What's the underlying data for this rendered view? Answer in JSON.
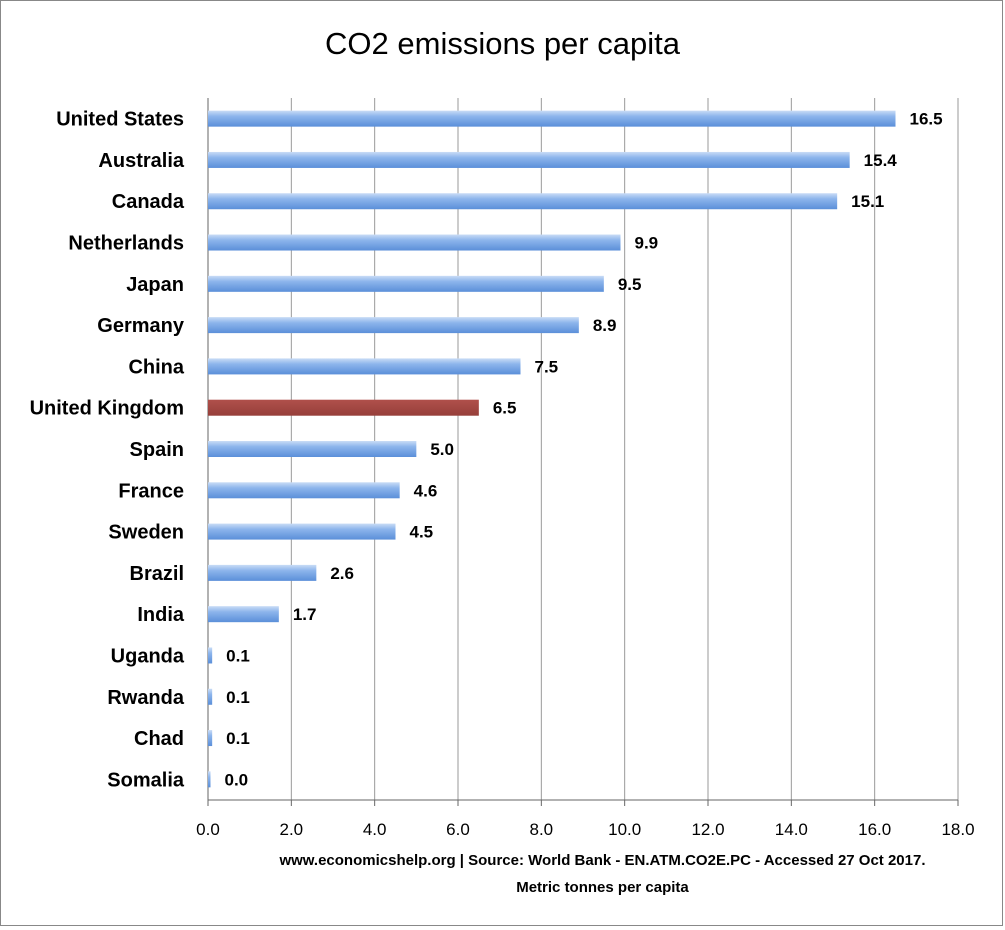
{
  "chart_data": {
    "type": "bar",
    "orientation": "horizontal",
    "title": "CO2 emissions per capita",
    "categories": [
      "United States",
      "Australia",
      "Canada",
      "Netherlands",
      "Japan",
      "Germany",
      "China",
      "United Kingdom",
      "Spain",
      "France",
      "Sweden",
      "Brazil",
      "India",
      "Uganda",
      "Rwanda",
      "Chad",
      "Somalia"
    ],
    "values": [
      16.5,
      15.4,
      15.1,
      9.9,
      9.5,
      8.9,
      7.5,
      6.5,
      5.0,
      4.6,
      4.5,
      2.6,
      1.7,
      0.1,
      0.1,
      0.1,
      0.0
    ],
    "value_labels": [
      "16.5",
      "15.4",
      "15.1",
      "9.9",
      "9.5",
      "8.9",
      "7.5",
      "6.5",
      "5.0",
      "4.6",
      "4.5",
      "2.6",
      "1.7",
      "0.1",
      "0.1",
      "0.1",
      "0.0"
    ],
    "highlight": "United Kingdom",
    "xlim": [
      0,
      18
    ],
    "x_ticks": [
      "0.0",
      "2.0",
      "4.0",
      "6.0",
      "8.0",
      "10.0",
      "12.0",
      "14.0",
      "16.0",
      "18.0"
    ],
    "grid": "vertical",
    "colors": {
      "bar": "#6f9fe0",
      "highlight": "#a34a45",
      "grid": "#9a9a9a"
    },
    "source_note": "www.economicshelp.org | Source: World Bank - EN.ATM.CO2E.PC - Accessed 27 Oct 2017.",
    "unit_note": "Metric tonnes per capita"
  }
}
